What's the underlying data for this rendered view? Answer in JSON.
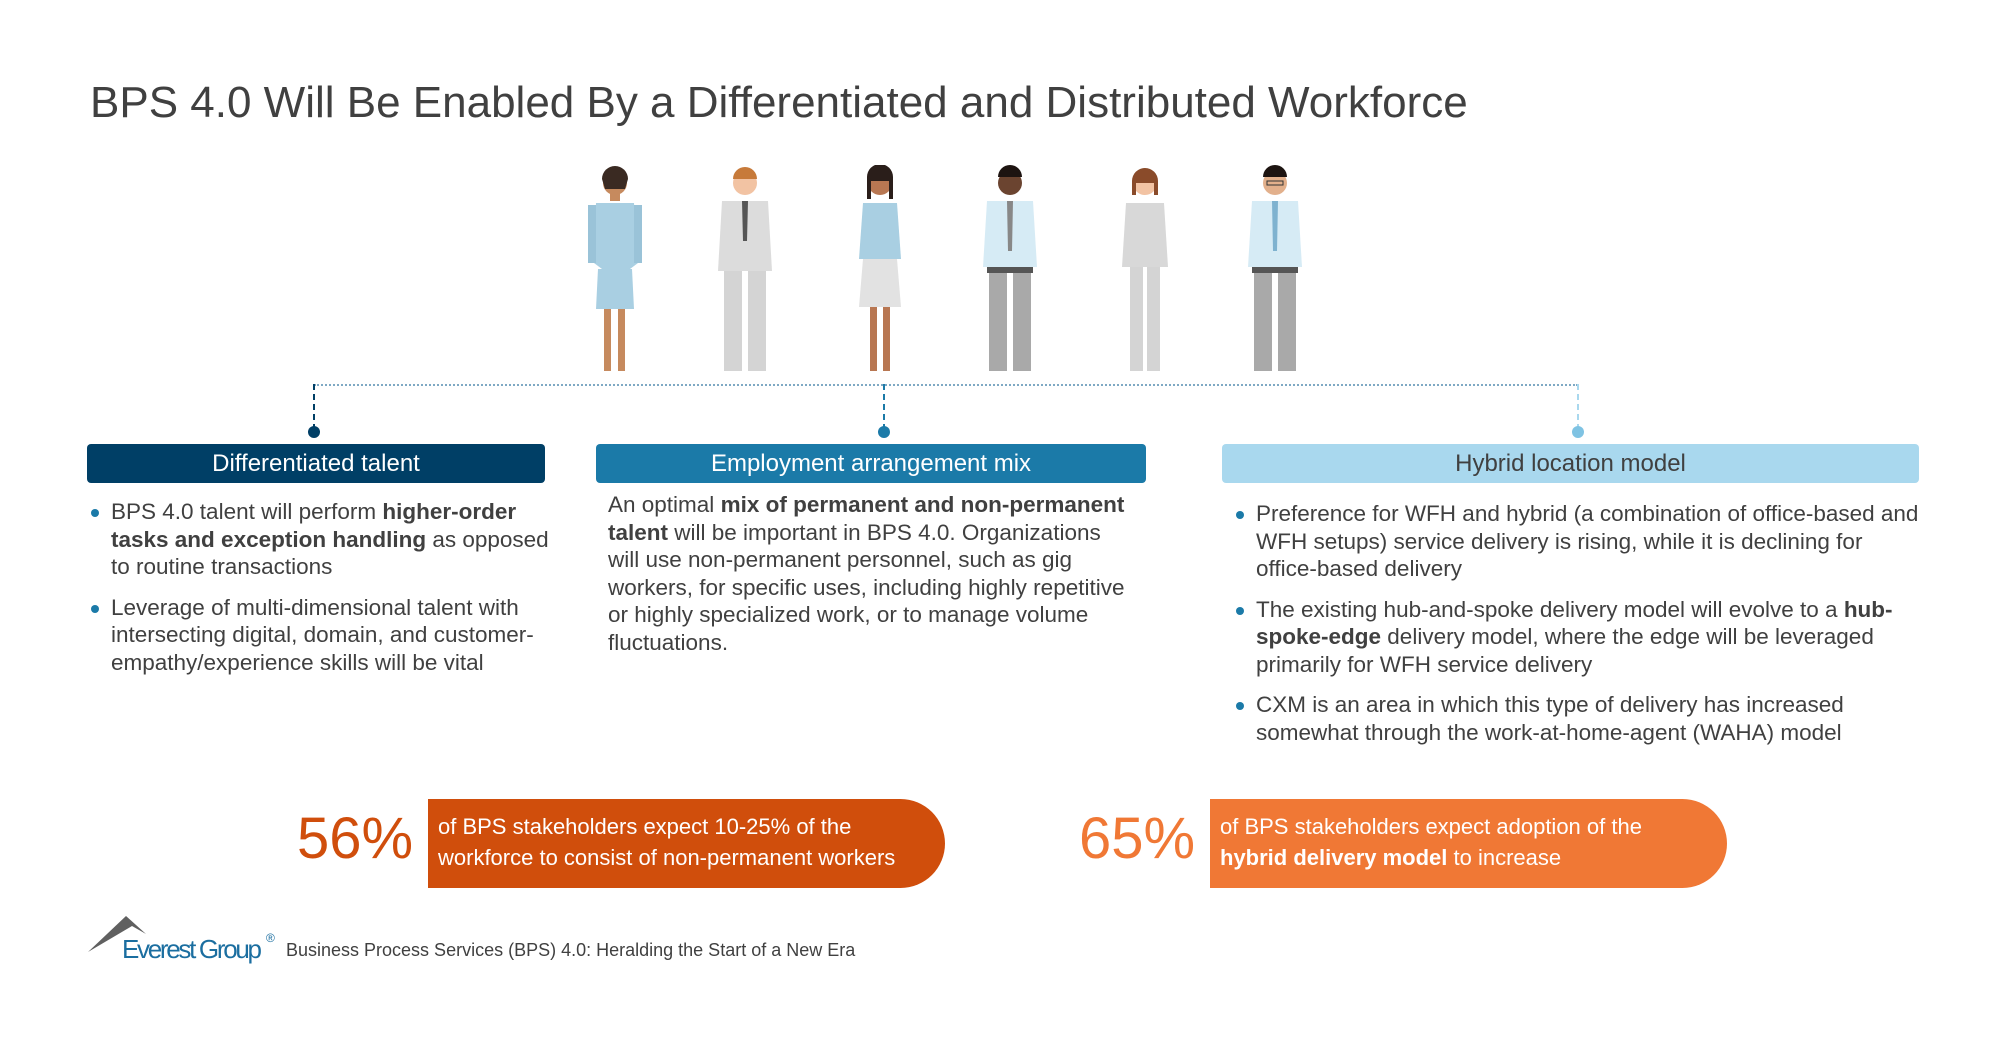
{
  "title": "BPS 4.0 Will Be Enabled By a Differentiated and Distributed Workforce",
  "colors": {
    "dark_blue": "#003f66",
    "mid_blue": "#1b7aa8",
    "light_blue": "#a9d8ee",
    "orange_dark": "#d04e0c",
    "orange_light": "#f07835"
  },
  "columns": [
    {
      "header": "Differentiated talent",
      "bullets": [
        {
          "pre": "BPS 4.0 talent will perform ",
          "bold": "higher-order tasks and exception handling",
          "post": " as opposed to routine transactions"
        },
        {
          "pre": "Leverage of multi-dimensional talent with intersecting digital, domain, and customer-empathy/experience skills will be vital",
          "bold": "",
          "post": ""
        }
      ]
    },
    {
      "header": "Employment arrangement mix",
      "paragraph": {
        "pre": "An optimal ",
        "bold": "mix of permanent and non-permanent talent",
        "post": " will be important in BPS 4.0. Organizations will use non-permanent personnel, such as gig workers, for specific uses, including highly repetitive or highly specialized work, or to manage volume fluctuations."
      }
    },
    {
      "header": "Hybrid location model",
      "bullets": [
        {
          "pre": "Preference for WFH and hybrid (a combination of office-based and WFH setups) service delivery is rising, while it is declining for office-based delivery",
          "bold": "",
          "post": ""
        },
        {
          "pre": "The existing hub-and-spoke delivery model will evolve to a ",
          "bold": "hub-spoke-edge",
          "post": " delivery model, where the edge will be leveraged primarily for WFH service delivery"
        },
        {
          "pre": "CXM is an area in which this type of delivery has increased somewhat through the work-at-home-agent (WAHA) model",
          "bold": "",
          "post": ""
        }
      ]
    }
  ],
  "stats": [
    {
      "value": "56%",
      "pre": "of BPS stakeholders expect 10-25% of the workforce to consist of non-permanent workers",
      "bold": "",
      "post": ""
    },
    {
      "value": "65%",
      "pre": "of BPS stakeholders expect adoption of the ",
      "bold": "hybrid delivery model",
      "post": " to increase"
    }
  ],
  "footer": {
    "logo": "Everest Group®",
    "text": "Business Process Services (BPS) 4.0: Heralding the Start of a New Era"
  }
}
